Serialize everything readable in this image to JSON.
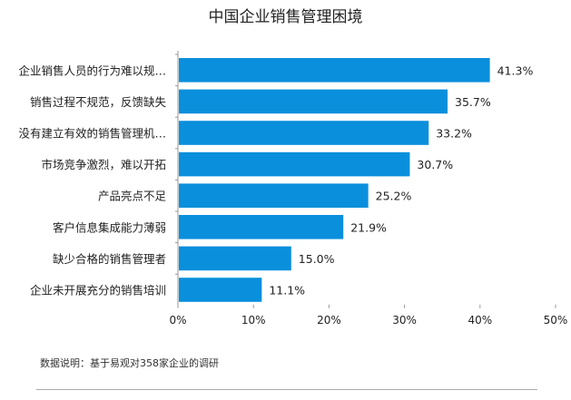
{
  "chart_data": {
    "type": "bar",
    "orientation": "horizontal",
    "title": "中国企业销售管理困境",
    "categories": [
      "企业销售人员的行为难以规…",
      "销售过程不规范，反馈缺失",
      "没有建立有效的销售管理机…",
      "市场竞争激烈，难以开拓",
      "产品亮点不足",
      "客户信息集成能力薄弱",
      "缺少合格的销售管理者",
      "企业未开展充分的销售培训"
    ],
    "values": [
      41.3,
      35.7,
      33.2,
      30.7,
      25.2,
      21.9,
      15.0,
      11.1
    ],
    "value_labels": [
      "41.3%",
      "35.7%",
      "33.2%",
      "30.7%",
      "25.2%",
      "21.9%",
      "15.0%",
      "11.1%"
    ],
    "xlim": [
      0,
      50
    ],
    "x_ticks": [
      "0%",
      "10%",
      "20%",
      "30%",
      "40%",
      "50%"
    ],
    "grid": false,
    "bar_color": "#0a8fdc",
    "note": "数据说明：基于易观对358家企业的调研"
  }
}
